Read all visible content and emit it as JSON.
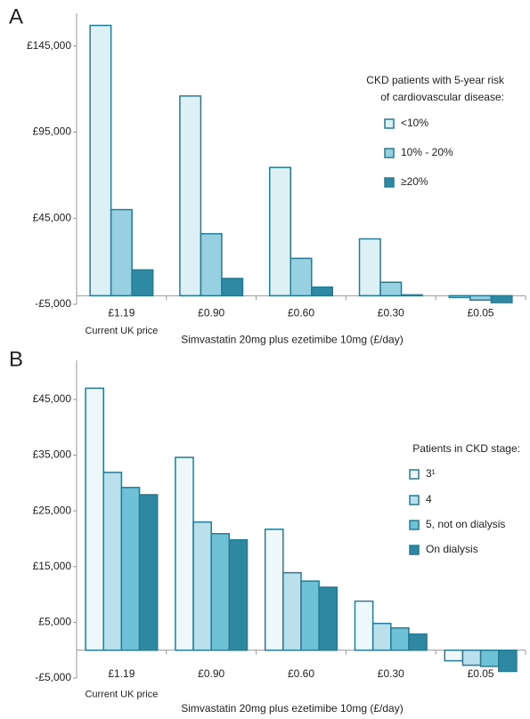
{
  "chart_data": [
    {
      "type": "bar",
      "panel": "A",
      "categories": [
        "£1.19",
        "£0.90",
        "£0.60",
        "£0.30",
        "£0.05"
      ],
      "note": "Current UK price",
      "x_label": "Simvastatin 20mg plus ezetimibe 10mg (£/day)",
      "legend_title": [
        "CKD patients with 5-year risk",
        "of cardiovascular disease:"
      ],
      "series": [
        {
          "name": "<10%",
          "color": "#dcf0f6",
          "values": [
            157000,
            116000,
            74500,
            33000,
            -1000
          ]
        },
        {
          "name": "10% - 20%",
          "color": "#97d0e1",
          "values": [
            50000,
            36000,
            21700,
            7800,
            -2500
          ]
        },
        {
          "name": "≥20%",
          "color": "#2e89a2",
          "values": [
            15000,
            10000,
            5000,
            500,
            -4000
          ]
        }
      ],
      "ylim": [
        -5000,
        164000
      ],
      "yticks": [
        {
          "value": -5000,
          "label": "-£5,000"
        },
        {
          "value": 45000,
          "label": "£45,000"
        },
        {
          "value": 95000,
          "label": "£95,000"
        },
        {
          "value": 145000,
          "label": "£145,000"
        }
      ]
    },
    {
      "type": "bar",
      "panel": "B",
      "categories": [
        "£1.19",
        "£0.90",
        "£0.60",
        "£0.30",
        "£0.05"
      ],
      "note": "Current UK price",
      "x_label": "Simvastatin 20mg plus ezetimibe 10mg (£/day)",
      "legend_title": [
        "Patients in CKD stage:"
      ],
      "series": [
        {
          "name": "3¹",
          "color": "#eef8fb",
          "values": [
            47000,
            34600,
            21700,
            8800,
            -1900
          ]
        },
        {
          "name": "4",
          "color": "#b9e0ec",
          "values": [
            31900,
            23000,
            13900,
            4800,
            -2700
          ]
        },
        {
          "name": "5, not on dialysis",
          "color": "#6fc1d5",
          "values": [
            29200,
            20900,
            12400,
            4000,
            -2900
          ]
        },
        {
          "name": "On dialysis",
          "color": "#2f88a1",
          "values": [
            27900,
            19800,
            11300,
            2900,
            -3800
          ]
        }
      ],
      "ylim": [
        -5000,
        52000
      ],
      "yticks": [
        {
          "value": -5000,
          "label": "-£5,000"
        },
        {
          "value": 5000,
          "label": "£5,000"
        },
        {
          "value": 15000,
          "label": "£15,000"
        },
        {
          "value": 25000,
          "label": "£25,000"
        },
        {
          "value": 35000,
          "label": "£35,000"
        },
        {
          "value": 45000,
          "label": "£45,000"
        }
      ]
    }
  ]
}
